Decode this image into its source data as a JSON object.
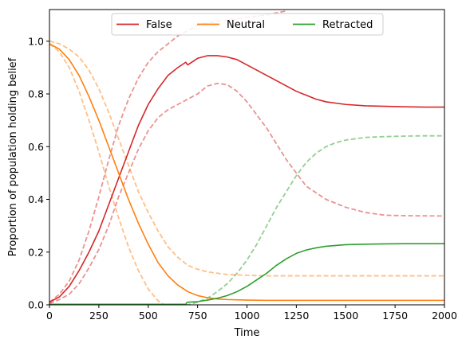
{
  "chart_data": {
    "type": "line",
    "title": "",
    "xlabel": "Time",
    "ylabel": "Proportion of population holding belief",
    "xlim": [
      0,
      2000
    ],
    "ylim": [
      0,
      1.12
    ],
    "xticks": [
      0,
      250,
      500,
      750,
      1000,
      1250,
      1500,
      1750,
      2000
    ],
    "yticks": [
      0.0,
      0.2,
      0.4,
      0.6,
      0.8,
      1.0
    ],
    "xtick_labels": [
      "0",
      "250",
      "500",
      "750",
      "1000",
      "1250",
      "1500",
      "1750",
      "2000"
    ],
    "ytick_labels": [
      "0.0",
      "0.2",
      "0.4",
      "0.6",
      "0.8",
      "1.0"
    ],
    "grid": false,
    "legend_position": "upper-center",
    "legend": [
      {
        "label": "False",
        "color": "#d62728"
      },
      {
        "label": "Neutral",
        "color": "#ff7f0e"
      },
      {
        "label": "Retracted",
        "color": "#2ca02c"
      }
    ],
    "series": [
      {
        "name": "False",
        "style": "solid",
        "color": "#d62728",
        "x": [
          0,
          50,
          100,
          150,
          200,
          250,
          300,
          350,
          400,
          450,
          500,
          550,
          600,
          650,
          690,
          700,
          750,
          800,
          850,
          900,
          950,
          1000,
          1050,
          1100,
          1150,
          1200,
          1250,
          1300,
          1350,
          1400,
          1500,
          1600,
          1700,
          1800,
          1900,
          2000
        ],
        "y": [
          0.01,
          0.03,
          0.07,
          0.13,
          0.2,
          0.28,
          0.38,
          0.48,
          0.58,
          0.68,
          0.76,
          0.82,
          0.87,
          0.9,
          0.92,
          0.91,
          0.935,
          0.945,
          0.945,
          0.94,
          0.93,
          0.91,
          0.89,
          0.87,
          0.85,
          0.83,
          0.81,
          0.795,
          0.78,
          0.77,
          0.76,
          0.755,
          0.753,
          0.751,
          0.75,
          0.75
        ]
      },
      {
        "name": "Neutral",
        "style": "solid",
        "color": "#ff7f0e",
        "x": [
          0,
          50,
          100,
          150,
          200,
          250,
          300,
          350,
          400,
          450,
          500,
          550,
          600,
          650,
          700,
          750,
          800,
          850,
          900,
          1000,
          1100,
          1200,
          1500,
          2000
        ],
        "y": [
          0.99,
          0.97,
          0.93,
          0.87,
          0.79,
          0.7,
          0.6,
          0.5,
          0.4,
          0.31,
          0.23,
          0.16,
          0.11,
          0.075,
          0.05,
          0.035,
          0.027,
          0.022,
          0.02,
          0.018,
          0.017,
          0.017,
          0.017,
          0.017
        ]
      },
      {
        "name": "Retracted",
        "style": "solid",
        "color": "#2ca02c",
        "x": [
          0,
          690,
          695,
          700,
          750,
          800,
          850,
          900,
          950,
          1000,
          1050,
          1100,
          1150,
          1200,
          1250,
          1300,
          1350,
          1400,
          1500,
          1600,
          1700,
          1800,
          2000
        ],
        "y": [
          0.002,
          0.002,
          0.008,
          0.01,
          0.012,
          0.018,
          0.025,
          0.035,
          0.05,
          0.07,
          0.095,
          0.12,
          0.15,
          0.175,
          0.195,
          0.208,
          0.216,
          0.222,
          0.228,
          0.23,
          0.231,
          0.232,
          0.232
        ]
      },
      {
        "style": "dashed",
        "color": "#d62728",
        "x": [
          0,
          50,
          100,
          150,
          200,
          250,
          300,
          350,
          400,
          450,
          500,
          550,
          600,
          650,
          700,
          750,
          800,
          850,
          900,
          950,
          1000,
          1100,
          1200
        ],
        "y": [
          0.01,
          0.04,
          0.09,
          0.17,
          0.28,
          0.41,
          0.55,
          0.68,
          0.78,
          0.86,
          0.92,
          0.96,
          0.99,
          1.02,
          1.04,
          1.06,
          1.07,
          1.075,
          1.08,
          1.085,
          1.09,
          1.1,
          1.115
        ]
      },
      {
        "style": "dashed",
        "color": "#d62728",
        "x": [
          0,
          50,
          100,
          150,
          200,
          250,
          300,
          350,
          400,
          450,
          500,
          550,
          600,
          650,
          700,
          750,
          800,
          850,
          900,
          950,
          1000,
          1050,
          1100,
          1150,
          1200,
          1250,
          1300,
          1400,
          1500,
          1600,
          1700,
          1800,
          2000
        ],
        "y": [
          0.005,
          0.02,
          0.04,
          0.08,
          0.14,
          0.21,
          0.3,
          0.41,
          0.5,
          0.59,
          0.66,
          0.71,
          0.74,
          0.76,
          0.78,
          0.8,
          0.83,
          0.84,
          0.835,
          0.81,
          0.77,
          0.72,
          0.67,
          0.61,
          0.55,
          0.5,
          0.45,
          0.4,
          0.37,
          0.35,
          0.34,
          0.338,
          0.337
        ]
      },
      {
        "style": "dashed",
        "color": "#ff7f0e",
        "x": [
          0,
          50,
          100,
          150,
          200,
          250,
          300,
          350,
          400,
          450,
          500,
          550,
          600,
          650,
          700,
          750,
          800,
          850,
          900,
          1000,
          1100,
          1200,
          1500,
          2000
        ],
        "y": [
          1.0,
          0.99,
          0.97,
          0.94,
          0.89,
          0.82,
          0.73,
          0.63,
          0.53,
          0.43,
          0.35,
          0.28,
          0.22,
          0.18,
          0.15,
          0.135,
          0.125,
          0.12,
          0.115,
          0.112,
          0.11,
          0.11,
          0.11,
          0.11
        ]
      },
      {
        "style": "dashed",
        "color": "#ff7f0e",
        "x": [
          0,
          50,
          100,
          150,
          200,
          250,
          300,
          350,
          400,
          450,
          500,
          550,
          580
        ],
        "y": [
          0.99,
          0.96,
          0.9,
          0.81,
          0.7,
          0.58,
          0.45,
          0.33,
          0.22,
          0.13,
          0.06,
          0.015,
          0.0
        ]
      },
      {
        "style": "dashed",
        "color": "#2ca02c",
        "x": [
          0,
          700,
          750,
          800,
          850,
          900,
          950,
          1000,
          1050,
          1100,
          1150,
          1200,
          1250,
          1300,
          1350,
          1400,
          1450,
          1500,
          1600,
          1700,
          1800,
          1900,
          2000
        ],
        "y": [
          0.0,
          0.0,
          0.01,
          0.025,
          0.05,
          0.08,
          0.12,
          0.17,
          0.23,
          0.3,
          0.37,
          0.43,
          0.49,
          0.54,
          0.575,
          0.6,
          0.615,
          0.625,
          0.635,
          0.638,
          0.64,
          0.641,
          0.641
        ]
      }
    ]
  }
}
